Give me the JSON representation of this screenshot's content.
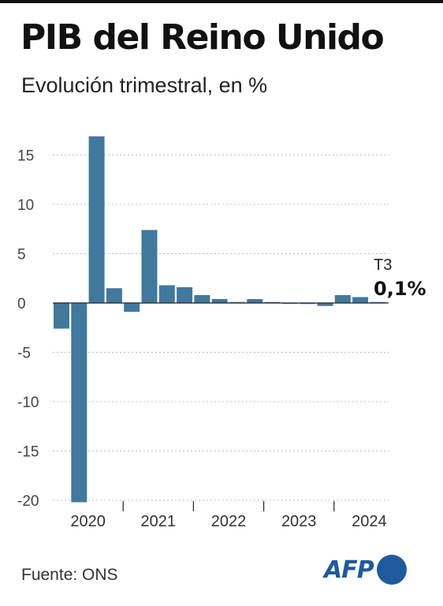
{
  "header": {
    "title": "PIB del Reino Unido",
    "subtitle": "Evolución trimestral, en %"
  },
  "footer": {
    "source": "Fuente: ONS",
    "logo_text": "AFP"
  },
  "colors": {
    "bar": "#41789e",
    "grid": "#bbbbbb",
    "axis": "#222222",
    "logo": "#1e5a9c"
  },
  "chart_data": {
    "type": "bar",
    "title": "",
    "xlabel": "",
    "ylabel": "",
    "ylim": [
      -20,
      17
    ],
    "grid": true,
    "yticks": [
      15,
      10,
      5,
      0,
      -5,
      -10,
      -15,
      -20
    ],
    "ytick_labels": [
      "15",
      "10",
      "5",
      "0",
      "-5",
      "-10",
      "-15",
      "-20"
    ],
    "year_labels": [
      "2020",
      "2021",
      "2022",
      "2023",
      "2024"
    ],
    "quarters_per_year": 4,
    "values": [
      -2.6,
      -20.2,
      16.9,
      1.5,
      -0.9,
      7.4,
      1.8,
      1.6,
      0.8,
      0.4,
      0.1,
      0.4,
      0.1,
      0.0,
      -0.1,
      -0.3,
      0.8,
      0.6,
      0.1
    ],
    "annotation": {
      "label": "T3",
      "value_label": "0,1%"
    }
  }
}
